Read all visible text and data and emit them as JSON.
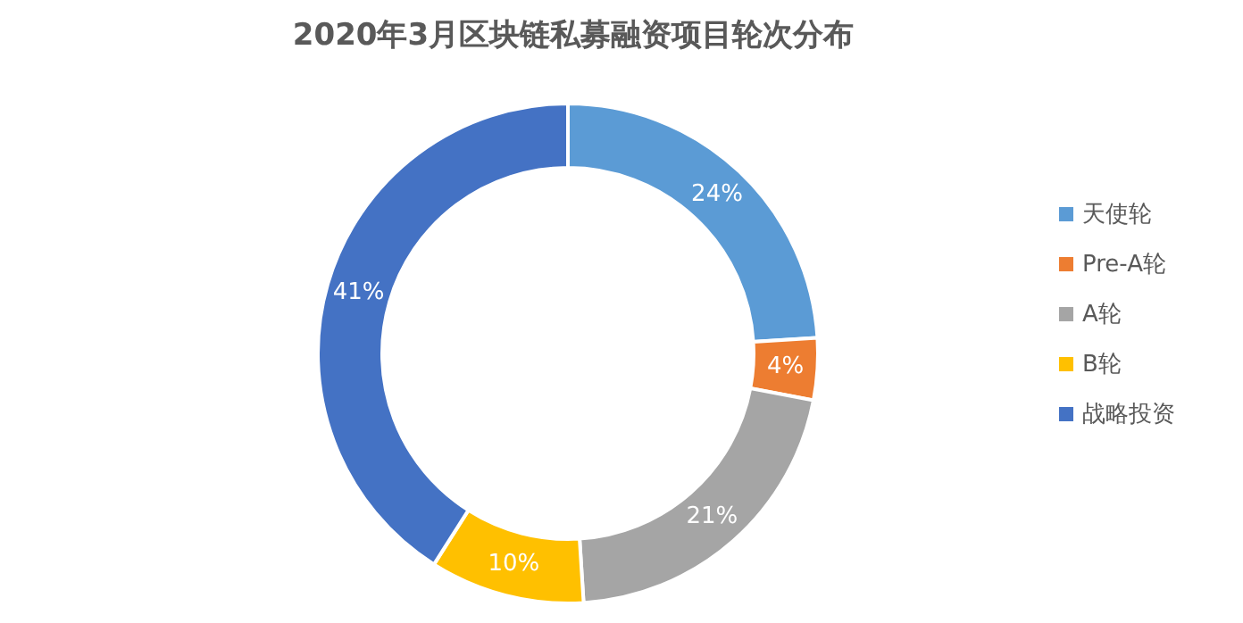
{
  "chart_data": {
    "type": "donut",
    "title": "2020年3月区块链私募融资项目轮次分布",
    "categories": [
      "天使轮",
      "Pre-A轮",
      "A轮",
      "B轮",
      "战略投资"
    ],
    "values": [
      24,
      4,
      21,
      10,
      41
    ],
    "value_labels": [
      "24%",
      "4%",
      "21%",
      "10%",
      "41%"
    ],
    "colors": [
      "#5b9bd5",
      "#ed7d31",
      "#a5a5a5",
      "#ffc000",
      "#4472c4"
    ],
    "legend": "right"
  }
}
